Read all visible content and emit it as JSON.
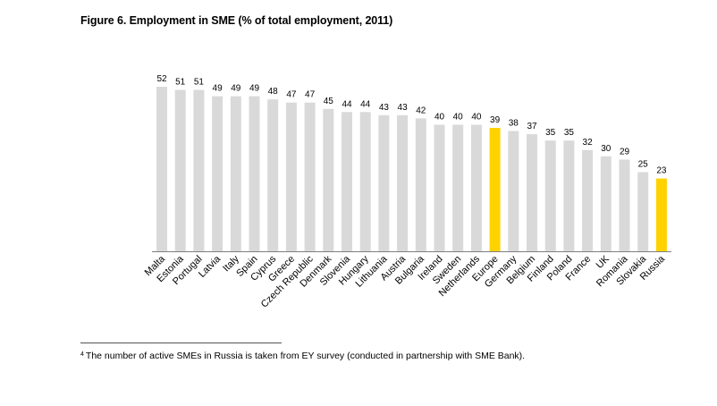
{
  "chart_data": {
    "type": "bar",
    "title": "Figure 6. Employment in  SME (% of total employment, 2011)",
    "xlabel": "",
    "ylabel": "",
    "ylim": [
      0,
      52
    ],
    "grid": false,
    "legend": "none",
    "categories": [
      "Malta",
      "Estonia",
      "Portugal",
      "Latvia",
      "Italy",
      "Spain",
      "Cyprus",
      "Greece",
      "Czech Republic",
      "Denmark",
      "Slovenia",
      "Hungary",
      "Lithuania",
      "Austria",
      "Bulgaria",
      "Ireland",
      "Sweden",
      "Netherlands",
      "Europe",
      "Germany",
      "Belgium",
      "Finland",
      "Poland",
      "France",
      "UK",
      "Romania",
      "Slovakia",
      "Russia"
    ],
    "values": [
      52,
      51,
      51,
      49,
      49,
      49,
      48,
      47,
      47,
      45,
      44,
      44,
      43,
      43,
      42,
      40,
      40,
      40,
      39,
      38,
      37,
      35,
      35,
      32,
      30,
      29,
      25,
      23
    ],
    "highlight": [
      "Europe",
      "Russia"
    ],
    "colors": {
      "bar": "#d9d9d9",
      "highlight": "#ffd200",
      "axis": "#7f7f7f"
    }
  },
  "footnote": {
    "marker": "4",
    "text": "The number of active SMEs in Russia is taken from EY survey (conducted in partnership with SME Bank)."
  }
}
